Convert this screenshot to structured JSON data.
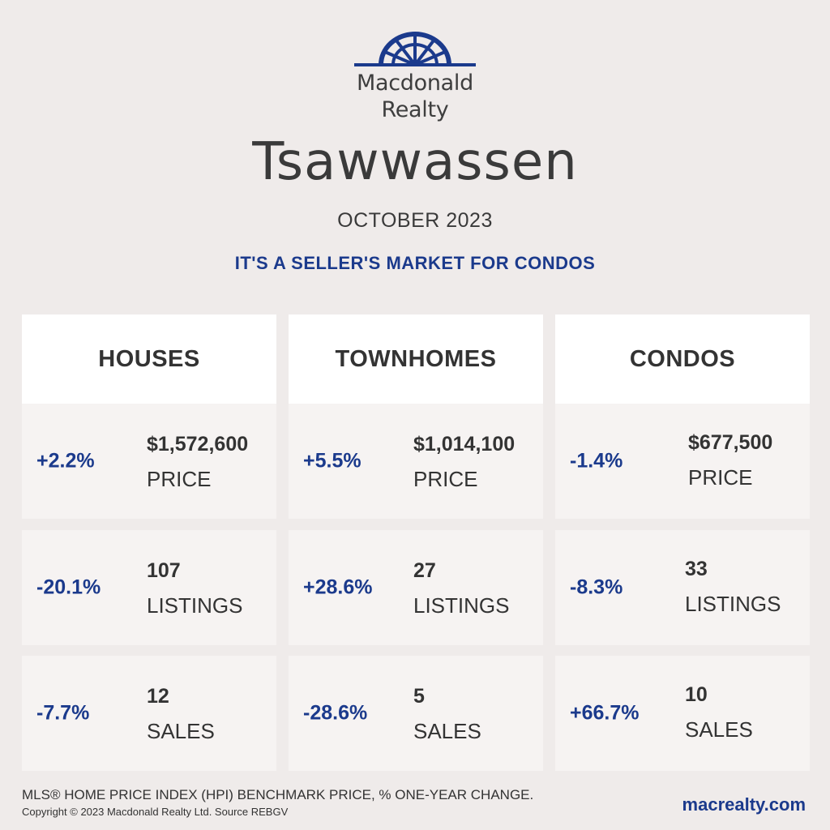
{
  "brand": {
    "line1": "Macdonald",
    "line2": "Realty",
    "logo_icon": "sun-arch-logo-icon",
    "color": "#1b3a8c"
  },
  "city": "Tsawwassen",
  "month": "OCTOBER 2023",
  "tagline": "IT'S A SELLER'S MARKET FOR CONDOS",
  "columns": [
    {
      "title": "HOUSES",
      "rows": [
        {
          "pct": "+2.2%",
          "value": "$1,572,600",
          "label": "PRICE"
        },
        {
          "pct": "-20.1%",
          "value": "107",
          "label": "LISTINGS"
        },
        {
          "pct": "-7.7%",
          "value": "12",
          "label": "SALES"
        }
      ]
    },
    {
      "title": "TOWNHOMES",
      "rows": [
        {
          "pct": "+5.5%",
          "value": "$1,014,100",
          "label": "PRICE"
        },
        {
          "pct": "+28.6%",
          "value": "27",
          "label": "LISTINGS"
        },
        {
          "pct": "-28.6%",
          "value": "5",
          "label": "SALES"
        }
      ]
    },
    {
      "title": "CONDOS",
      "rows": [
        {
          "pct": "-1.4%",
          "value": "$677,500",
          "label": "PRICE"
        },
        {
          "pct": "-8.3%",
          "value": "33",
          "label": "LISTINGS"
        },
        {
          "pct": "+66.7%",
          "value": "10",
          "label": "SALES"
        }
      ]
    }
  ],
  "footer": {
    "note": "MLS® HOME PRICE INDEX (HPI) BENCHMARK PRICE, % ONE-YEAR CHANGE.",
    "copyright": "Copyright © 2023 Macdonald Realty Ltd. Source REBGV",
    "website": "macrealty.com"
  },
  "colors": {
    "background": "#efebea",
    "accent": "#1b3a8c",
    "card": "#f6f3f2",
    "header": "#ffffff"
  }
}
